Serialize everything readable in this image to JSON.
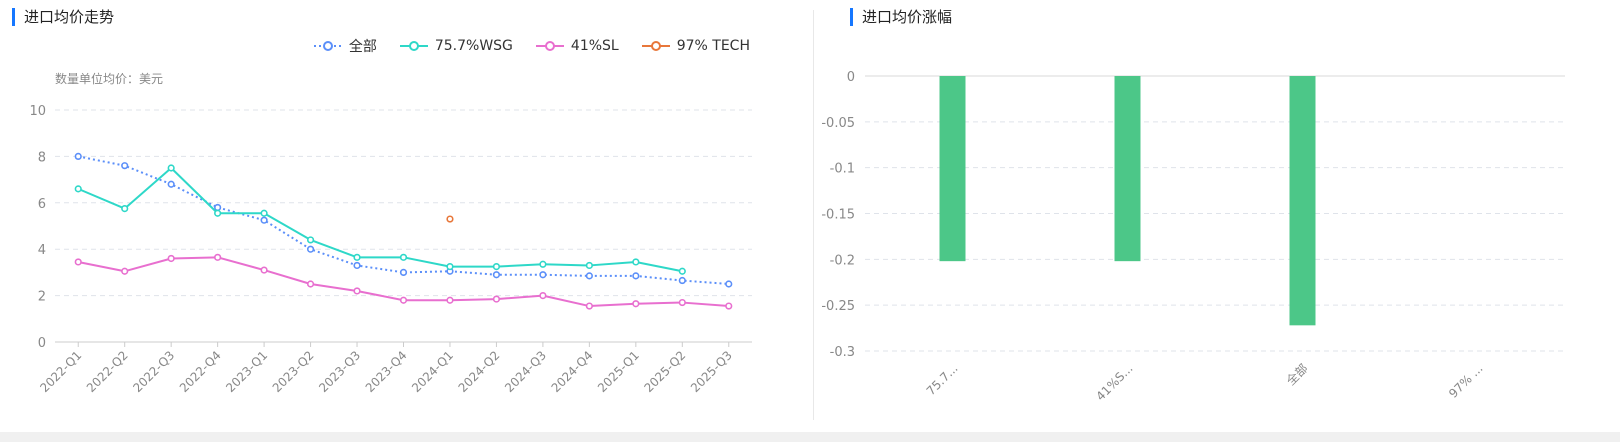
{
  "left_panel": {
    "title": "进口均价走势",
    "unit_label": "数量单位均价：美元"
  },
  "right_panel": {
    "title": "进口均价涨幅"
  },
  "chart_data": [
    {
      "type": "line",
      "title": "进口均价走势",
      "ylabel": "数量单位均价：美元",
      "ylim": [
        0,
        10
      ],
      "yticks": [
        0,
        2,
        4,
        6,
        8,
        10
      ],
      "grid": true,
      "legend_position": "top-right",
      "categories": [
        "2022-Q1",
        "2022-Q2",
        "2022-Q3",
        "2022-Q4",
        "2023-Q1",
        "2023-Q2",
        "2023-Q3",
        "2023-Q4",
        "2024-Q1",
        "2024-Q2",
        "2024-Q3",
        "2024-Q4",
        "2025-Q1",
        "2025-Q2",
        "2025-Q3"
      ],
      "series": [
        {
          "name": "全部",
          "color": "#5b8ff9",
          "style": "dotted",
          "values": [
            8.0,
            7.6,
            6.8,
            5.8,
            5.25,
            4.0,
            3.3,
            3.0,
            3.05,
            2.9,
            2.9,
            2.85,
            2.85,
            2.65,
            2.5
          ]
        },
        {
          "name": "75.7%WSG",
          "color": "#2ed8c8",
          "style": "solid",
          "values": [
            6.6,
            5.75,
            7.5,
            5.55,
            5.55,
            4.4,
            3.65,
            3.65,
            3.25,
            3.25,
            3.35,
            3.3,
            3.45,
            3.05,
            null
          ]
        },
        {
          "name": "41%SL",
          "color": "#e86fcf",
          "style": "solid",
          "values": [
            3.45,
            3.05,
            3.6,
            3.65,
            3.1,
            2.5,
            2.2,
            1.8,
            1.8,
            1.85,
            2.0,
            1.55,
            1.65,
            1.7,
            1.55
          ]
        },
        {
          "name": "97% TECH",
          "color": "#e8773a",
          "style": "solid",
          "values": [
            null,
            null,
            null,
            null,
            null,
            null,
            null,
            null,
            5.3,
            null,
            null,
            null,
            null,
            null,
            null
          ]
        }
      ]
    },
    {
      "type": "bar",
      "title": "进口均价涨幅",
      "ylim": [
        -0.3,
        0
      ],
      "yticks": [
        0,
        -0.05,
        -0.1,
        -0.15,
        -0.2,
        -0.25,
        -0.3
      ],
      "ytick_labels": [
        "0",
        "-0.05",
        "-0.1",
        "-0.15",
        "-0.2",
        "-0.25",
        "-0.3"
      ],
      "grid": true,
      "color": "#4cc788",
      "categories": [
        "75.7...",
        "41%S...",
        "全部",
        "97% ..."
      ],
      "values": [
        -0.202,
        -0.202,
        -0.272,
        null
      ]
    }
  ]
}
